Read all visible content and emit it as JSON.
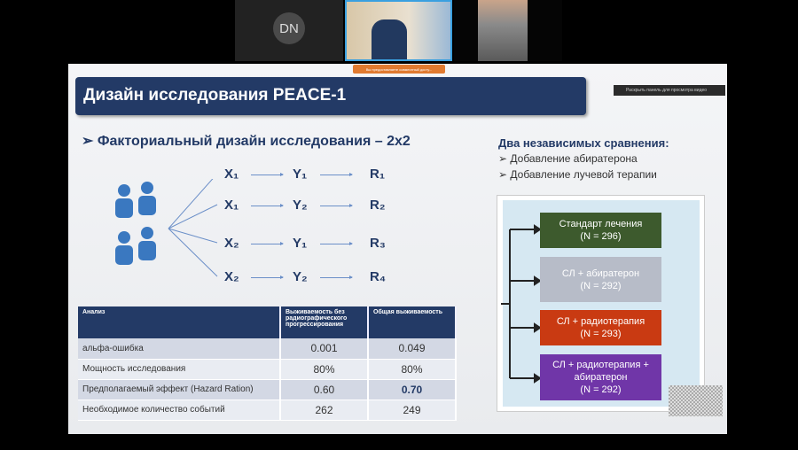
{
  "call": {
    "participants": [
      {
        "initials": "DN"
      },
      {
        "name": "video-presenter"
      },
      {
        "name": "video-participant"
      }
    ],
    "share_toast": "Вы предоставляете совместный досту...",
    "video_panel_button": "Раскрыть панель для просмотра видео"
  },
  "slide": {
    "title": "Дизайн исследования PEACE-1",
    "subtitle": "Факториальный дизайн исследования – 2x2",
    "design_rows": [
      [
        "X₁",
        "Y₁",
        "R₁"
      ],
      [
        "X₁",
        "Y₂",
        "R₂"
      ],
      [
        "X₂",
        "Y₁",
        "R₃"
      ],
      [
        "X₂",
        "Y₂",
        "R₄"
      ]
    ],
    "comparisons_title": "Два независимых сравнения:",
    "comparisons": [
      "Добавление абиратерона",
      "Добавление лучевой терапии"
    ],
    "arms": [
      {
        "label": "Стандарт лечения",
        "n": "(N = 296)",
        "color": "#3d5a2d"
      },
      {
        "label": "СЛ + абиратерон",
        "n": "(N = 292)",
        "color": "#b7bcc8"
      },
      {
        "label": "СЛ + радиотерапия",
        "n": "(N = 293)",
        "color": "#c93a12"
      },
      {
        "label": "СЛ + радиотерапия + абиратерон",
        "n": "(N = 292)",
        "color": "#7036a8"
      }
    ],
    "table": {
      "headers": [
        "Анализ",
        "Выживаемость без радиографического прогрессирования",
        "Общая выживаемость"
      ],
      "rows": [
        [
          "альфа-ошибка",
          "0.001",
          "0.049"
        ],
        [
          "Мощность исследования",
          "80%",
          "80%"
        ],
        [
          "Предполагаемый эффект (Hazard Ration)",
          "0.60",
          "0.70"
        ],
        [
          "Необходимое количество событий",
          "262",
          "249"
        ]
      ]
    }
  }
}
